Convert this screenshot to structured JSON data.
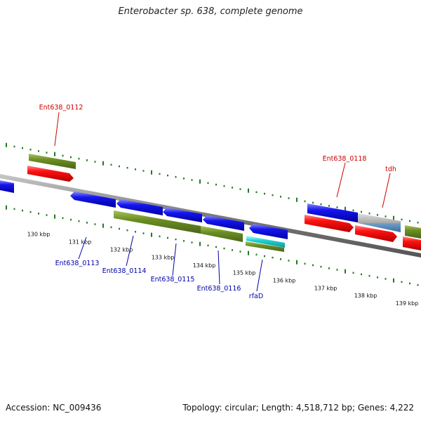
{
  "title": "Enterobacter sp. 638, complete genome",
  "footer": {
    "accession": "Accession: NC_009436",
    "summary": "Topology: circular; Length: 4,518,712 bp; Genes: 4,222"
  },
  "colors": {
    "background": "#ffffff",
    "backbone": "#7a7a7a",
    "ticks": "#1f7a1f",
    "cds_forward": "#ee1111",
    "cds_reverse": "#1111dd",
    "gene_features": "#6b8e23",
    "rna_feature": "#22cccc",
    "other_feature": "#7aa0c8",
    "label_forward": "#cc0000",
    "label_reverse": "#0000aa"
  },
  "scale": {
    "unit": "kbp",
    "labels": [
      "130 kbp",
      "131 kbp",
      "132 kbp",
      "133 kbp",
      "134 kbp",
      "135 kbp",
      "136 kbp",
      "137 kbp",
      "138 kbp",
      "139 kbp"
    ]
  },
  "labels_forward": [
    "Ent638_0112",
    "Ent638_0118",
    "tdh"
  ],
  "labels_reverse": [
    "Ent638_0113",
    "Ent638_0114",
    "Ent638_0115",
    "Ent638_0116",
    "rfaD"
  ]
}
